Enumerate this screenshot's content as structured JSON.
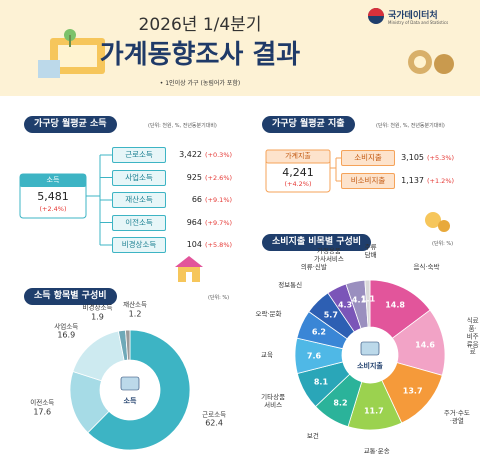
{
  "header": {
    "period": "2026년 1/4분기",
    "title": "가계동향조사 결과",
    "note": "• 1인이상 가구 (농림어가 포함)",
    "agency": "국가데이터처",
    "agency_en": "Ministry of Data and Statistics"
  },
  "income": {
    "title": "가구당 월평균 소득",
    "unit": "(단위: 천원, %, 전년동분기대비)",
    "total": {
      "label": "소득",
      "value": "5,481",
      "change": "(+2.4%)"
    },
    "items": [
      {
        "label": "근로소득",
        "value": "3,422",
        "change": "(+0.3%)"
      },
      {
        "label": "사업소득",
        "value": "925",
        "change": "(+2.6%)"
      },
      {
        "label": "재산소득",
        "value": "66",
        "change": "(+9.1%)"
      },
      {
        "label": "이전소득",
        "value": "964",
        "change": "(+9.7%)"
      },
      {
        "label": "비경상소득",
        "value": "104",
        "change": "(+5.8%)"
      }
    ]
  },
  "expenditure": {
    "title": "가구당 월평균 지출",
    "unit": "(단위: 천원, %, 전년동분기대비)",
    "total": {
      "label": "가계지출",
      "value": "4,241",
      "change": "(+4.2%)"
    },
    "items": [
      {
        "label": "소비지출",
        "value": "3,105",
        "change": "(+5.3%)"
      },
      {
        "label": "비소비지출",
        "value": "1,137",
        "change": "(+1.2%)"
      }
    ]
  },
  "chart_data": [
    {
      "type": "pie",
      "title": "소득 항목별 구성비",
      "unit": "(단위: %)",
      "center_label": "소득",
      "label_position": "outside",
      "categories": [
        "근로소득",
        "이전소득",
        "사업소득",
        "비경상소득",
        "재산소득"
      ],
      "values": [
        62.4,
        17.6,
        16.9,
        1.9,
        1.2
      ],
      "colors": [
        "#3db4c4",
        "#a6dbe6",
        "#cdeaf0",
        "#6fa9b8",
        "#9a9a9a"
      ]
    },
    {
      "type": "pie",
      "title": "소비지출 비목별 구성비",
      "unit": "(단위: %)",
      "center_label": "소비지출",
      "label_position": "inside",
      "categories": [
        "음식·숙박",
        "식료품·\n비주류음료",
        "주거·수도\n·광열",
        "교통·운송",
        "보건",
        "기타상품\n서비스",
        "교육",
        "오락·문화",
        "정보통신",
        "의류·신발",
        "가정용품\n가사서비스",
        "주류\n담배"
      ],
      "values": [
        14.8,
        14.6,
        13.7,
        11.7,
        8.2,
        8.1,
        7.6,
        6.2,
        5.7,
        4.3,
        4.1,
        1.1
      ],
      "colors": [
        "#e2559b",
        "#f2a3c6",
        "#f59a3a",
        "#9bd24f",
        "#2bb39a",
        "#2aa6b8",
        "#4fb8e6",
        "#3a86d6",
        "#2d5fb3",
        "#7b55b8",
        "#9a8fbf",
        "#d9d9d9"
      ]
    }
  ]
}
